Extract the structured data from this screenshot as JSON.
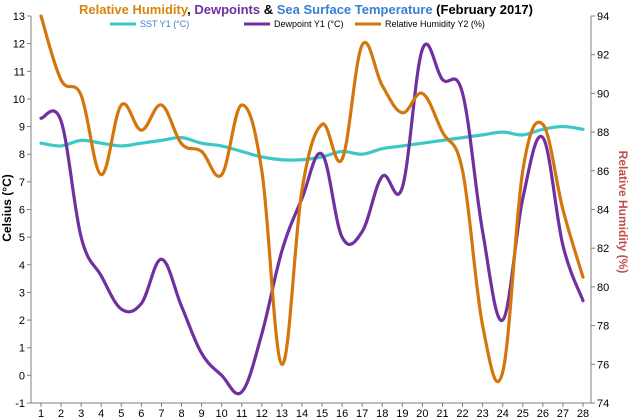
{
  "chart_data": {
    "type": "line",
    "title_parts": [
      {
        "text": "Relative Humidity",
        "color": "#d4860b"
      },
      {
        "text": ", ",
        "color": "#000000"
      },
      {
        "text": "Dewpoints",
        "color": "#7030a0"
      },
      {
        "text": " & ",
        "color": "#000000"
      },
      {
        "text": "Sea Surface Temperature",
        "color": "#3a7fd4"
      },
      {
        "text": " (February 2017)",
        "color": "#000000"
      }
    ],
    "xlabel": "",
    "ylabel": "Celsius (°C)",
    "y2label": "Relative Humidity (%)",
    "ylim": [
      -1,
      13
    ],
    "yticks": [
      -1,
      0,
      1,
      2,
      3,
      4,
      5,
      6,
      7,
      8,
      9,
      10,
      11,
      12,
      13
    ],
    "y2lim": [
      74,
      94
    ],
    "y2ticks": [
      74,
      76,
      78,
      80,
      82,
      84,
      86,
      88,
      90,
      92,
      94
    ],
    "x": [
      1,
      2,
      3,
      4,
      5,
      6,
      7,
      8,
      9,
      10,
      11,
      12,
      13,
      14,
      15,
      16,
      17,
      18,
      19,
      20,
      21,
      22,
      23,
      24,
      25,
      26,
      27,
      28
    ],
    "legend_position": "top",
    "grid": false,
    "series": [
      {
        "name": "SST Y1 (°C)",
        "axis": "y1",
        "color": "#3cc8c8",
        "label_color": "#3a7fd4",
        "values": [
          8.4,
          8.3,
          8.5,
          8.4,
          8.3,
          8.4,
          8.5,
          8.6,
          8.4,
          8.3,
          8.1,
          7.9,
          7.8,
          7.8,
          7.9,
          8.1,
          8.0,
          8.2,
          8.3,
          8.4,
          8.5,
          8.6,
          8.7,
          8.8,
          8.7,
          8.9,
          9.0,
          8.9
        ]
      },
      {
        "name": "Dewpoint Y1 (°C)",
        "axis": "y1",
        "color": "#7030a0",
        "label_color": "#000000",
        "values": [
          9.3,
          9.2,
          5.0,
          3.6,
          2.4,
          2.6,
          4.2,
          2.5,
          0.8,
          0.0,
          -0.6,
          1.5,
          4.5,
          6.4,
          8.0,
          5.0,
          5.2,
          7.2,
          6.8,
          11.8,
          10.7,
          10.2,
          5.2,
          2.0,
          6.4,
          8.6,
          4.7,
          2.7
        ]
      },
      {
        "name": "Relative Humidity Y2 (%)",
        "axis": "y2",
        "color": "#d4760b",
        "label_color": "#000000",
        "values": [
          94.0,
          90.7,
          89.9,
          85.8,
          89.4,
          88.1,
          89.4,
          87.4,
          87.0,
          85.8,
          89.4,
          86.0,
          76.0,
          85.0,
          88.4,
          86.6,
          92.5,
          90.4,
          89.0,
          90.0,
          88.0,
          86.0,
          78.0,
          75.6,
          86.0,
          88.4,
          84.0,
          80.5
        ]
      }
    ]
  }
}
